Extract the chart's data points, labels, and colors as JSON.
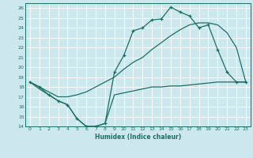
{
  "xlabel": "Humidex (Indice chaleur)",
  "bg_color": "#cce8ee",
  "line_color": "#1a7060",
  "grid_color": "#ffffff",
  "xlim": [
    -0.5,
    23.5
  ],
  "ylim": [
    14,
    26.5
  ],
  "xticks": [
    0,
    1,
    2,
    3,
    4,
    5,
    6,
    7,
    8,
    9,
    10,
    11,
    12,
    13,
    14,
    15,
    16,
    17,
    18,
    19,
    20,
    21,
    22,
    23
  ],
  "yticks": [
    14,
    15,
    16,
    17,
    18,
    19,
    20,
    21,
    22,
    23,
    24,
    25,
    26
  ],
  "line1_x": [
    0,
    1,
    2,
    3,
    4,
    5,
    6,
    7,
    8,
    9,
    10,
    11,
    12,
    13,
    14,
    15,
    16,
    17,
    18,
    19,
    20,
    21,
    22,
    23
  ],
  "line1_y": [
    18.5,
    18.0,
    17.2,
    16.6,
    16.2,
    14.8,
    14.0,
    14.0,
    14.3,
    19.5,
    21.2,
    23.7,
    24.0,
    24.8,
    24.9,
    26.1,
    25.6,
    25.2,
    24.0,
    24.3,
    21.8,
    19.5,
    18.5,
    18.5
  ],
  "line2_x": [
    0,
    1,
    2,
    3,
    4,
    5,
    6,
    7,
    8,
    9,
    10,
    11,
    12,
    13,
    14,
    15,
    16,
    17,
    18,
    19,
    20,
    21,
    22,
    23
  ],
  "line2_y": [
    18.5,
    18.0,
    17.5,
    17.0,
    17.0,
    17.2,
    17.5,
    18.0,
    18.5,
    19.0,
    19.8,
    20.5,
    21.0,
    21.8,
    22.5,
    23.2,
    23.8,
    24.3,
    24.5,
    24.5,
    24.3,
    23.5,
    22.0,
    18.5
  ],
  "line3_x": [
    0,
    1,
    2,
    3,
    4,
    5,
    6,
    7,
    8,
    9,
    10,
    11,
    12,
    13,
    14,
    15,
    16,
    17,
    18,
    19,
    20,
    21,
    22,
    23
  ],
  "line3_y": [
    18.5,
    17.8,
    17.2,
    16.6,
    16.2,
    14.8,
    14.0,
    14.0,
    14.3,
    17.2,
    17.4,
    17.6,
    17.8,
    18.0,
    18.0,
    18.1,
    18.1,
    18.2,
    18.3,
    18.4,
    18.5,
    18.5,
    18.5,
    18.5
  ],
  "marker_x": [
    0,
    1,
    2,
    3,
    4,
    5,
    6,
    7,
    8,
    9,
    10,
    11,
    12,
    13,
    14,
    15,
    16,
    17,
    18,
    19,
    20,
    21,
    22,
    23
  ],
  "marker1_y": [
    18.5,
    18.0,
    17.2,
    16.6,
    16.2,
    14.8,
    14.0,
    14.0,
    14.3,
    19.5,
    21.2,
    23.7,
    24.0,
    24.8,
    24.9,
    26.1,
    25.6,
    25.2,
    24.0,
    24.3,
    21.8,
    19.5,
    18.5,
    18.5
  ]
}
